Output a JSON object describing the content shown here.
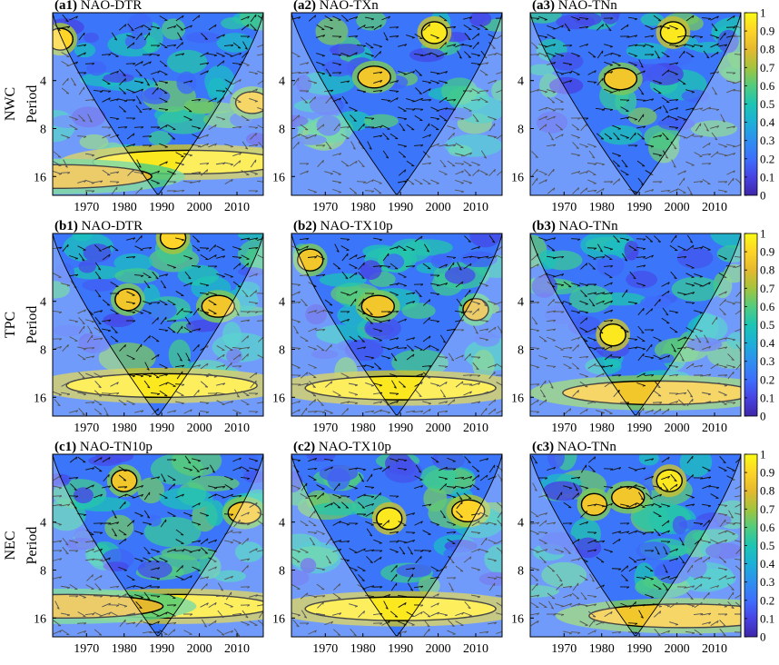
{
  "figure": {
    "row_labels": [
      "NWC",
      "TPC",
      "NEC"
    ],
    "y_axis_label": "Period",
    "y_tick_labels": [
      "4",
      "8",
      "16"
    ],
    "x_tick_labels": [
      "1970",
      "1980",
      "1990",
      "2000",
      "2010"
    ],
    "colorbar_tick_labels": [
      "0",
      "0.1",
      "0.2",
      "0.3",
      "0.4",
      "0.5",
      "0.6",
      "0.7",
      "0.8",
      "0.9",
      "1"
    ],
    "colormap": [
      "#3e26a8",
      "#4743e3",
      "#3e6ffc",
      "#2e8ff0",
      "#1cb0d7",
      "#1cc5b4",
      "#52cc7e",
      "#a3c43d",
      "#e5b92e",
      "#fdd427",
      "#f9fb15"
    ]
  },
  "chart_data": [
    {
      "type": "heatmap",
      "row": "NWC",
      "panel_id": "(a1)",
      "name": "NAO-DTR",
      "xlim": [
        1961,
        2017
      ],
      "ylim": [
        1.5,
        21
      ],
      "y_scale": "log2",
      "high_coherence_regions": [
        {
          "x": 1963,
          "y": 2.2,
          "level": 0.9
        },
        {
          "x": 2014,
          "y": 5.5,
          "level": 0.85
        },
        {
          "x": 1997,
          "y": 13,
          "level": 0.95
        },
        {
          "x": 1962,
          "y": 16,
          "level": 0.8
        }
      ]
    },
    {
      "type": "heatmap",
      "row": "NWC",
      "panel_id": "(a2)",
      "name": "NAO-TXn",
      "xlim": [
        1961,
        2017
      ],
      "ylim": [
        1.5,
        21
      ],
      "y_scale": "log2",
      "high_coherence_regions": [
        {
          "x": 1999,
          "y": 2.0,
          "level": 0.95
        },
        {
          "x": 1983,
          "y": 3.8,
          "level": 0.85
        }
      ]
    },
    {
      "type": "heatmap",
      "row": "NWC",
      "panel_id": "(a3)",
      "name": "NAO-TNn",
      "xlim": [
        1961,
        2017
      ],
      "ylim": [
        1.5,
        21
      ],
      "y_scale": "log2",
      "high_coherence_regions": [
        {
          "x": 1999,
          "y": 2.0,
          "level": 0.95
        },
        {
          "x": 1985,
          "y": 3.9,
          "level": 0.85
        }
      ]
    },
    {
      "type": "heatmap",
      "row": "TPC",
      "panel_id": "(b1)",
      "name": "NAO-DTR",
      "xlim": [
        1961,
        2017
      ],
      "ylim": [
        1.5,
        21
      ],
      "y_scale": "log2",
      "high_coherence_regions": [
        {
          "x": 1981,
          "y": 3.9,
          "level": 0.85
        },
        {
          "x": 2005,
          "y": 4.3,
          "level": 0.85
        },
        {
          "x": 1993,
          "y": 1.6,
          "level": 0.9
        },
        {
          "x": 1990,
          "y": 13.5,
          "level": 0.95
        }
      ]
    },
    {
      "type": "heatmap",
      "row": "TPC",
      "panel_id": "(b2)",
      "name": "NAO-TX10p",
      "xlim": [
        1961,
        2017
      ],
      "ylim": [
        1.5,
        21
      ],
      "y_scale": "log2",
      "high_coherence_regions": [
        {
          "x": 1966,
          "y": 2.2,
          "level": 0.85
        },
        {
          "x": 1984,
          "y": 4.3,
          "level": 0.85
        },
        {
          "x": 2010,
          "y": 4.5,
          "level": 0.8
        },
        {
          "x": 1990,
          "y": 14,
          "level": 0.95
        }
      ]
    },
    {
      "type": "heatmap",
      "row": "TPC",
      "panel_id": "(b3)",
      "name": "NAO-TNn",
      "xlim": [
        1961,
        2017
      ],
      "ylim": [
        1.5,
        21
      ],
      "y_scale": "log2",
      "high_coherence_regions": [
        {
          "x": 1983,
          "y": 6.5,
          "level": 0.95
        },
        {
          "x": 1995,
          "y": 15,
          "level": 0.85
        }
      ]
    },
    {
      "type": "heatmap",
      "row": "NEC",
      "panel_id": "(c1)",
      "name": "NAO-TN10p",
      "xlim": [
        1961,
        2017
      ],
      "ylim": [
        1.5,
        21
      ],
      "y_scale": "log2",
      "high_coherence_regions": [
        {
          "x": 1980,
          "y": 2.2,
          "level": 0.85
        },
        {
          "x": 2012,
          "y": 3.5,
          "level": 0.85
        },
        {
          "x": 1994,
          "y": 13.5,
          "level": 0.95
        },
        {
          "x": 1965,
          "y": 13.5,
          "level": 0.8
        }
      ]
    },
    {
      "type": "heatmap",
      "row": "NEC",
      "panel_id": "(c2)",
      "name": "NAO-TX10p",
      "xlim": [
        1961,
        2017
      ],
      "ylim": [
        1.5,
        21
      ],
      "y_scale": "log2",
      "high_coherence_regions": [
        {
          "x": 1987,
          "y": 3.8,
          "level": 0.95
        },
        {
          "x": 2008,
          "y": 3.4,
          "level": 0.9
        },
        {
          "x": 1990,
          "y": 14,
          "level": 0.95
        }
      ]
    },
    {
      "type": "heatmap",
      "row": "NEC",
      "panel_id": "(c3)",
      "name": "NAO-TNn",
      "xlim": [
        1961,
        2017
      ],
      "ylim": [
        1.5,
        21
      ],
      "y_scale": "log2",
      "high_coherence_regions": [
        {
          "x": 1978,
          "y": 3.1,
          "level": 0.85
        },
        {
          "x": 1987,
          "y": 2.8,
          "level": 0.85
        },
        {
          "x": 1998,
          "y": 2.2,
          "level": 0.95
        },
        {
          "x": 2002,
          "y": 15.5,
          "level": 0.85
        }
      ]
    }
  ]
}
